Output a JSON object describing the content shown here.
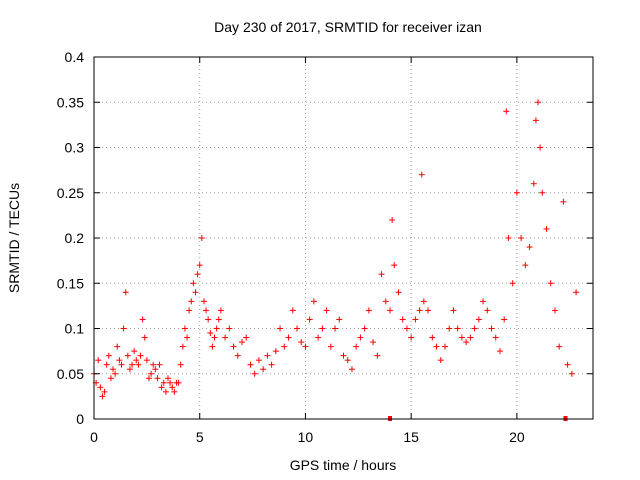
{
  "chart_data": {
    "type": "scatter",
    "title": "Day 230 of 2017, SRMTID for receiver izan",
    "xlabel": "GPS time / hours",
    "ylabel": "SRMTID / TECUs",
    "xlim": [
      0,
      23.6
    ],
    "ylim": [
      0,
      0.4
    ],
    "xticks": [
      0,
      5,
      10,
      15,
      20
    ],
    "xtick_labels": [
      "0",
      "5",
      "10",
      "15",
      "20"
    ],
    "yticks": [
      0,
      0.05,
      0.1,
      0.15,
      0.2,
      0.25,
      0.3,
      0.35,
      0.4
    ],
    "ytick_labels": [
      "0",
      "0.05",
      "0.1",
      "0.15",
      "0.2",
      "0.25",
      "0.3",
      "0.35",
      "0.4"
    ],
    "grid": true,
    "marker": "+",
    "color": "#ff0000",
    "series": [
      {
        "name": "SRMTID",
        "x": [
          0.0,
          0.1,
          0.2,
          0.3,
          0.4,
          0.5,
          0.6,
          0.7,
          0.8,
          0.9,
          1.0,
          1.1,
          1.2,
          1.3,
          1.4,
          1.5,
          1.6,
          1.7,
          1.8,
          1.9,
          2.0,
          2.1,
          2.2,
          2.3,
          2.4,
          2.5,
          2.6,
          2.7,
          2.8,
          2.9,
          3.0,
          3.1,
          3.2,
          3.3,
          3.4,
          3.5,
          3.6,
          3.7,
          3.8,
          3.9,
          4.0,
          4.1,
          4.2,
          4.3,
          4.4,
          4.5,
          4.6,
          4.7,
          4.8,
          4.9,
          5.0,
          5.1,
          5.2,
          5.3,
          5.4,
          5.5,
          5.6,
          5.7,
          5.8,
          5.9,
          6.0,
          6.2,
          6.4,
          6.6,
          6.8,
          7.0,
          7.2,
          7.4,
          7.6,
          7.8,
          8.0,
          8.2,
          8.4,
          8.6,
          8.8,
          9.0,
          9.2,
          9.4,
          9.6,
          9.8,
          10.0,
          10.2,
          10.4,
          10.6,
          10.8,
          11.0,
          11.2,
          11.4,
          11.6,
          11.8,
          12.0,
          12.2,
          12.4,
          12.6,
          12.8,
          13.0,
          13.2,
          13.4,
          13.6,
          13.8,
          14.0,
          14.1,
          14.2,
          14.4,
          14.6,
          14.8,
          15.0,
          15.2,
          15.4,
          15.5,
          15.6,
          15.8,
          16.0,
          16.2,
          16.4,
          16.6,
          16.8,
          17.0,
          17.2,
          17.4,
          17.6,
          17.8,
          18.0,
          18.2,
          18.4,
          18.6,
          18.8,
          19.0,
          19.2,
          19.4,
          19.5,
          19.6,
          19.8,
          20.0,
          20.2,
          20.4,
          20.6,
          20.8,
          20.9,
          21.0,
          21.1,
          21.2,
          21.4,
          21.6,
          21.8,
          22.0,
          22.2,
          22.4,
          22.6,
          22.8
        ],
        "y": [
          0.05,
          0.04,
          0.065,
          0.035,
          0.025,
          0.03,
          0.06,
          0.07,
          0.045,
          0.055,
          0.05,
          0.08,
          0.065,
          0.06,
          0.1,
          0.14,
          0.07,
          0.055,
          0.06,
          0.075,
          0.065,
          0.06,
          0.07,
          0.11,
          0.09,
          0.065,
          0.045,
          0.05,
          0.06,
          0.055,
          0.045,
          0.06,
          0.035,
          0.04,
          0.03,
          0.045,
          0.04,
          0.035,
          0.03,
          0.04,
          0.04,
          0.06,
          0.08,
          0.1,
          0.09,
          0.12,
          0.13,
          0.15,
          0.14,
          0.16,
          0.17,
          0.2,
          0.13,
          0.12,
          0.11,
          0.095,
          0.08,
          0.09,
          0.1,
          0.11,
          0.12,
          0.09,
          0.1,
          0.08,
          0.07,
          0.085,
          0.09,
          0.06,
          0.05,
          0.065,
          0.055,
          0.07,
          0.06,
          0.075,
          0.1,
          0.08,
          0.09,
          0.12,
          0.1,
          0.085,
          0.08,
          0.11,
          0.13,
          0.09,
          0.1,
          0.12,
          0.08,
          0.1,
          0.11,
          0.07,
          0.065,
          0.055,
          0.08,
          0.09,
          0.1,
          0.12,
          0.085,
          0.07,
          0.16,
          0.13,
          0.12,
          0.22,
          0.17,
          0.14,
          0.11,
          0.1,
          0.09,
          0.11,
          0.12,
          0.27,
          0.13,
          0.12,
          0.09,
          0.08,
          0.065,
          0.08,
          0.1,
          0.12,
          0.1,
          0.09,
          0.085,
          0.09,
          0.1,
          0.11,
          0.13,
          0.12,
          0.1,
          0.09,
          0.075,
          0.11,
          0.34,
          0.2,
          0.15,
          0.25,
          0.2,
          0.17,
          0.19,
          0.26,
          0.33,
          0.35,
          0.3,
          0.25,
          0.21,
          0.15,
          0.12,
          0.08,
          0.24,
          0.06,
          0.05,
          0.14
        ]
      }
    ],
    "axis_markers_x": [
      14.0,
      22.3
    ]
  }
}
